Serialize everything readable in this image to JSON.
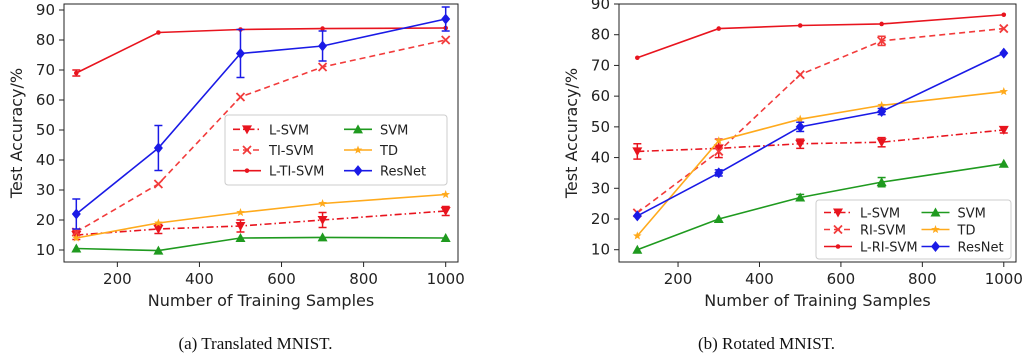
{
  "chart_data": [
    {
      "type": "line",
      "caption": "(a) Translated MNIST.",
      "xlabel": "Number of Training Samples",
      "ylabel": "Test Accuracy/%",
      "xlim": [
        70,
        1030
      ],
      "ylim": [
        6,
        92
      ],
      "xticks": [
        200,
        400,
        600,
        800,
        1000
      ],
      "yticks": [
        10,
        20,
        30,
        40,
        50,
        60,
        70,
        80,
        90
      ],
      "grid": false,
      "legend": {
        "position": "center-right",
        "columns": 2
      },
      "x": [
        100,
        300,
        500,
        700,
        1000
      ],
      "series": [
        {
          "name": "L-SVM",
          "color": "#e8141e",
          "linestyle": "dashdot",
          "marker": "triangle-down",
          "values": [
            15,
            17,
            18,
            20,
            23
          ],
          "errors": [
            1.5,
            1.5,
            2,
            2.5,
            1.5
          ]
        },
        {
          "name": "TI-SVM",
          "color": "#f23b3b",
          "linestyle": "dashed",
          "marker": "x",
          "values": [
            16,
            32,
            61,
            71,
            80
          ],
          "errors": [
            0,
            0,
            0,
            0,
            0
          ]
        },
        {
          "name": "L-TI-SVM",
          "color": "#e8141e",
          "linestyle": "solid",
          "marker": "dot",
          "values": [
            69,
            82.5,
            83.5,
            83.8,
            84
          ],
          "errors": [
            1,
            0,
            0,
            0,
            0
          ]
        },
        {
          "name": "SVM",
          "color": "#1f9a1f",
          "linestyle": "solid",
          "marker": "triangle-up",
          "values": [
            10.5,
            9.8,
            14,
            14.2,
            14
          ],
          "errors": [
            0,
            0,
            0,
            0,
            0
          ]
        },
        {
          "name": "TD",
          "color": "#ffaa1c",
          "linestyle": "solid",
          "marker": "star",
          "values": [
            14,
            19,
            22.5,
            25.5,
            28.5
          ],
          "errors": [
            0,
            0,
            0,
            0,
            0
          ]
        },
        {
          "name": "ResNet",
          "color": "#1a1ae6",
          "linestyle": "solid",
          "marker": "diamond",
          "values": [
            22,
            44,
            75.5,
            78,
            87
          ],
          "errors": [
            5,
            7.5,
            8,
            5,
            4
          ]
        }
      ]
    },
    {
      "type": "line",
      "caption": "(b) Rotated MNIST.",
      "xlabel": "Number of Training Samples",
      "ylabel": "Test Accuracy/%",
      "xlim": [
        55,
        1030
      ],
      "ylim": [
        6,
        90
      ],
      "xticks": [
        200,
        400,
        600,
        800,
        1000
      ],
      "yticks": [
        10,
        20,
        30,
        40,
        50,
        60,
        70,
        80,
        90
      ],
      "grid": false,
      "legend": {
        "position": "lower-right",
        "columns": 2
      },
      "x": [
        100,
        300,
        500,
        700,
        1000
      ],
      "series": [
        {
          "name": "L-SVM",
          "color": "#e8141e",
          "linestyle": "dashdot",
          "marker": "triangle-down",
          "values": [
            42,
            43,
            44.5,
            45,
            49
          ],
          "errors": [
            2.5,
            3,
            1.5,
            1.5,
            1
          ]
        },
        {
          "name": "RI-SVM",
          "color": "#f23b3b",
          "linestyle": "dashed",
          "marker": "x",
          "values": [
            22,
            42,
            67,
            78,
            82
          ],
          "errors": [
            0,
            0,
            0,
            1.5,
            0
          ]
        },
        {
          "name": "L-RI-SVM",
          "color": "#e8141e",
          "linestyle": "solid",
          "marker": "dot",
          "values": [
            72.5,
            82,
            83,
            83.5,
            86.5
          ],
          "errors": [
            0,
            0,
            0,
            0,
            0
          ]
        },
        {
          "name": "SVM",
          "color": "#1f9a1f",
          "linestyle": "solid",
          "marker": "triangle-up",
          "values": [
            10,
            20,
            27,
            32,
            38
          ],
          "errors": [
            0,
            0,
            1,
            1.5,
            0
          ]
        },
        {
          "name": "TD",
          "color": "#ffaa1c",
          "linestyle": "solid",
          "marker": "star",
          "values": [
            14.5,
            45.5,
            52.5,
            57,
            61.5
          ],
          "errors": [
            0,
            0,
            0,
            0,
            0
          ]
        },
        {
          "name": "ResNet",
          "color": "#1a1ae6",
          "linestyle": "solid",
          "marker": "diamond",
          "values": [
            21,
            35,
            50,
            55,
            74
          ],
          "errors": [
            0,
            1,
            1.5,
            1,
            0
          ]
        }
      ]
    }
  ]
}
